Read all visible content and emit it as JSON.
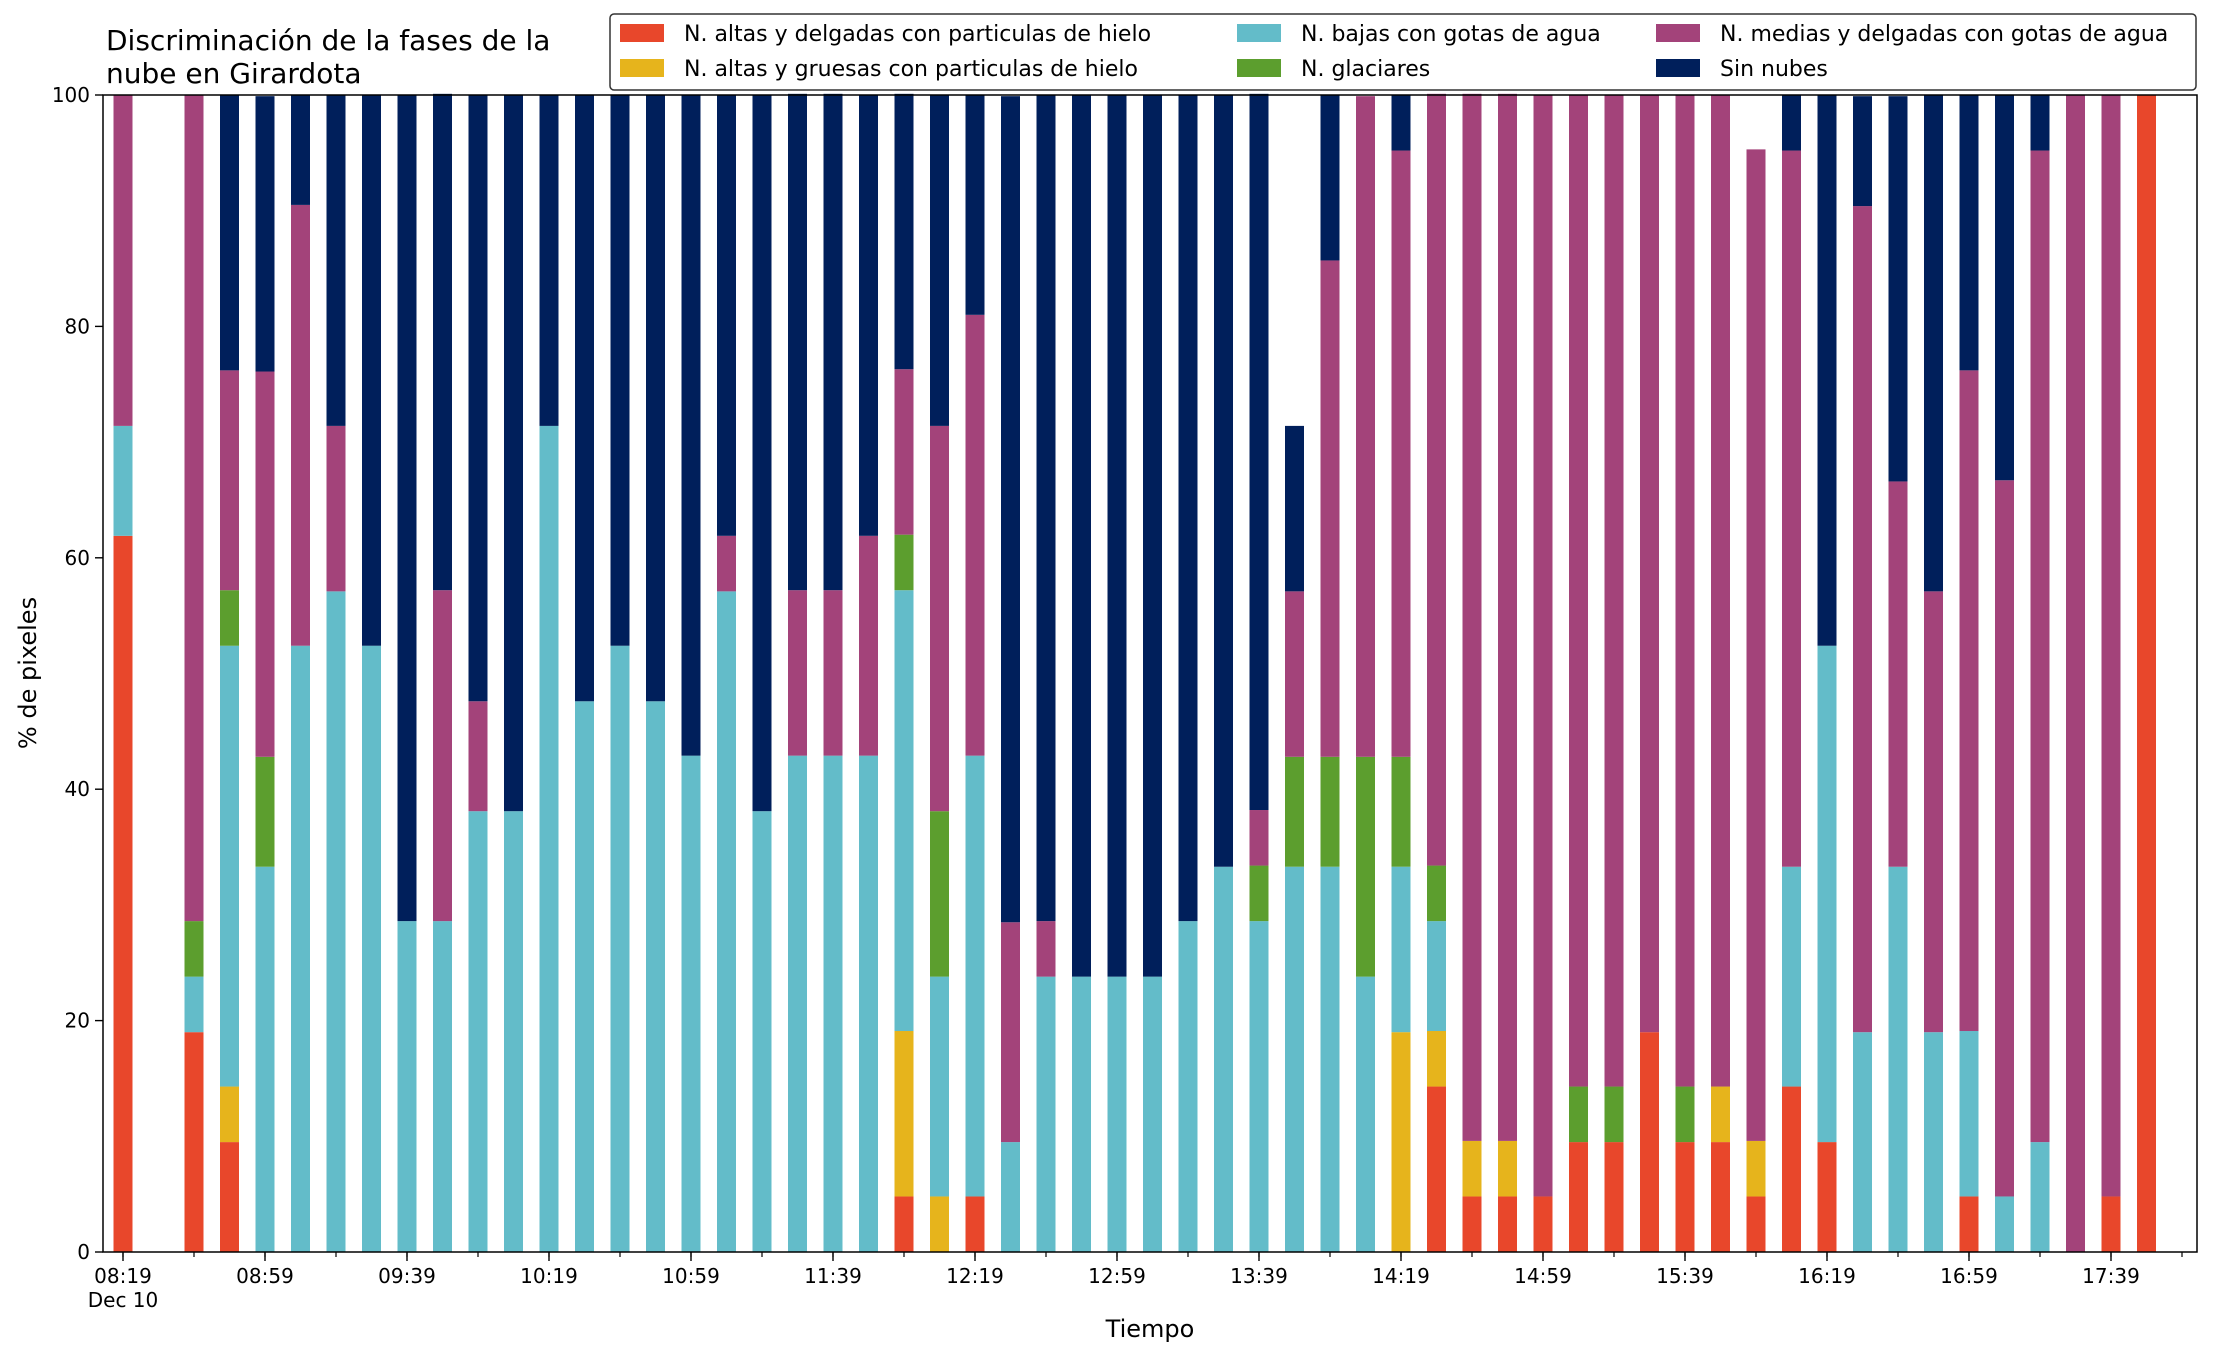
{
  "chart_data": {
    "type": "bar",
    "stacked": true,
    "title_lines": [
      "Discriminación de la fases de la",
      "nube en Girardota"
    ],
    "xlabel": "Tiempo",
    "ylabel": "% de pixeles",
    "ylim": [
      0,
      100
    ],
    "yticks": [
      "0",
      "20",
      "40",
      "60",
      "80",
      "100"
    ],
    "x_start": "08:19",
    "x_step_minutes": 10,
    "x_tick_labels": [
      {
        "index": 0,
        "label": "08:19",
        "sublabel": "Dec 10"
      },
      {
        "index": 4,
        "label": "08:59"
      },
      {
        "index": 8,
        "label": "09:39"
      },
      {
        "index": 12,
        "label": "10:19"
      },
      {
        "index": 16,
        "label": "10:59"
      },
      {
        "index": 20,
        "label": "11:39"
      },
      {
        "index": 24,
        "label": "12:19"
      },
      {
        "index": 28,
        "label": "12:59"
      },
      {
        "index": 32,
        "label": "13:39"
      },
      {
        "index": 36,
        "label": "14:19"
      },
      {
        "index": 40,
        "label": "14:59"
      },
      {
        "index": 44,
        "label": "15:39"
      },
      {
        "index": 48,
        "label": "16:19"
      },
      {
        "index": 52,
        "label": "16:59"
      },
      {
        "index": 56,
        "label": "17:39"
      }
    ],
    "legend_position": "top-right",
    "series": [
      {
        "name": "N. altas y delgadas con particulas de hielo",
        "color": "#e8472b",
        "values": [
          61.9,
          null,
          19.0,
          9.5,
          0,
          0,
          0,
          0,
          0,
          0,
          0,
          0,
          0,
          0,
          0,
          0,
          0,
          0,
          0,
          0,
          0,
          0,
          4.8,
          0,
          4.8,
          0,
          0,
          0,
          0,
          0,
          0,
          0,
          0,
          0,
          0,
          0,
          0,
          14.3,
          4.8,
          4.8,
          4.8,
          9.5,
          9.5,
          19.0,
          9.5,
          9.5,
          4.8,
          14.3,
          9.5,
          0,
          0,
          0,
          4.8,
          0,
          0,
          0,
          4.8,
          100
        ]
      },
      {
        "name": "N. altas y gruesas con particulas de hielo",
        "color": "#e6b41c",
        "values": [
          0,
          null,
          0,
          4.8,
          0,
          0,
          0,
          0,
          0,
          0,
          0,
          0,
          0,
          0,
          0,
          0,
          0,
          0,
          0,
          0,
          0,
          0,
          14.3,
          4.8,
          0,
          0,
          0,
          0,
          0,
          0,
          0,
          0,
          0,
          0,
          0,
          0,
          19.0,
          4.8,
          4.8,
          4.8,
          0,
          0,
          0,
          0,
          0,
          4.8,
          4.8,
          0,
          0,
          0,
          0,
          0,
          0,
          0,
          0,
          0,
          0,
          0
        ]
      },
      {
        "name": "N. bajas con gotas de agua",
        "color": "#63bcc9",
        "values": [
          9.5,
          null,
          4.8,
          38.1,
          33.3,
          52.4,
          57.1,
          52.4,
          28.6,
          28.6,
          38.1,
          38.1,
          71.4,
          47.6,
          52.4,
          47.6,
          42.9,
          57.1,
          38.1,
          42.9,
          42.9,
          42.9,
          38.1,
          19.0,
          38.1,
          9.5,
          23.8,
          23.8,
          23.8,
          23.8,
          28.6,
          33.3,
          28.6,
          33.3,
          33.3,
          23.8,
          14.3,
          9.5,
          0,
          0,
          0,
          0,
          0,
          0,
          0,
          0,
          0,
          19.0,
          42.9,
          19.0,
          33.3,
          19.0,
          14.3,
          4.8,
          9.5,
          0,
          0,
          0
        ]
      },
      {
        "name": "N. glaciares",
        "color": "#5c9e2e",
        "values": [
          0,
          null,
          4.8,
          4.8,
          9.5,
          0,
          0,
          0,
          0,
          0,
          0,
          0,
          0,
          0,
          0,
          0,
          0,
          0,
          0,
          0,
          0,
          0,
          4.8,
          14.3,
          0,
          0,
          0,
          0,
          0,
          0,
          0,
          0,
          4.8,
          9.5,
          9.5,
          19.0,
          9.5,
          4.8,
          0,
          0,
          0,
          4.8,
          4.8,
          0,
          4.8,
          0,
          0,
          0,
          0,
          0,
          0,
          0,
          0,
          0,
          0,
          0,
          0,
          0
        ]
      },
      {
        "name": "N. medias y delgadas con gotas de agua",
        "color": "#a3437a",
        "values": [
          28.6,
          null,
          71.4,
          19.0,
          33.3,
          38.1,
          14.3,
          0,
          0,
          28.6,
          9.5,
          0,
          0,
          0,
          0,
          0,
          0,
          4.8,
          0,
          14.3,
          14.3,
          19.0,
          14.3,
          33.3,
          38.1,
          19.0,
          4.8,
          0,
          0,
          0,
          0,
          0,
          4.8,
          14.3,
          42.9,
          57.1,
          52.4,
          66.7,
          90.5,
          90.5,
          95.2,
          85.7,
          85.7,
          81.0,
          85.7,
          85.7,
          85.7,
          61.9,
          0,
          71.4,
          33.3,
          38.1,
          57.1,
          61.9,
          85.7,
          100,
          95.2,
          0
        ]
      },
      {
        "name": "Sin nubes",
        "color": "#001f5b",
        "values": [
          0,
          null,
          0,
          23.8,
          23.8,
          9.5,
          28.6,
          47.6,
          71.4,
          42.9,
          52.4,
          61.9,
          28.6,
          52.4,
          47.6,
          52.4,
          57.1,
          38.1,
          61.9,
          42.9,
          42.9,
          38.1,
          23.8,
          28.6,
          19.0,
          71.4,
          71.4,
          76.2,
          76.2,
          76.2,
          71.4,
          66.7,
          61.9,
          14.3,
          14.3,
          0,
          4.8,
          0,
          0,
          0,
          0,
          0,
          0,
          0,
          0,
          0,
          0,
          4.8,
          47.6,
          9.5,
          33.3,
          42.9,
          23.8,
          33.3,
          4.8,
          0,
          0,
          0
        ]
      }
    ]
  }
}
